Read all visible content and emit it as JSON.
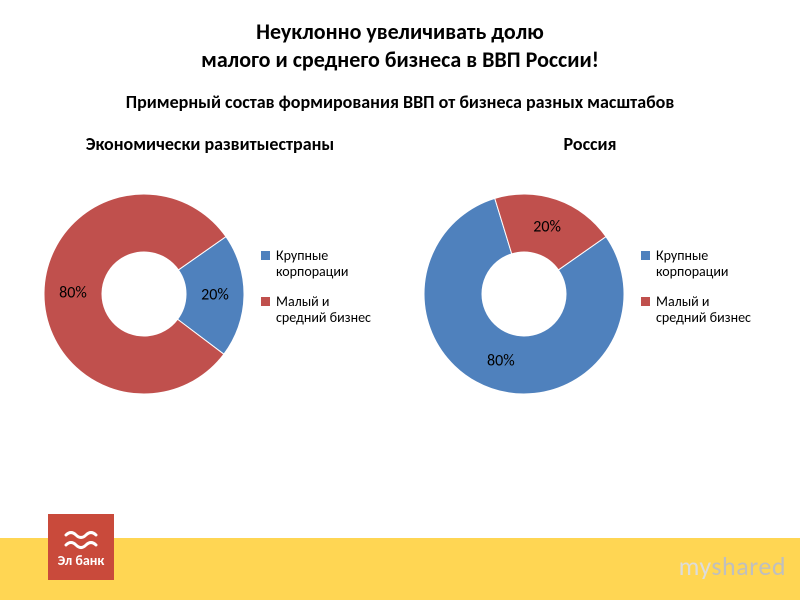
{
  "title_line1": "Неуклонно увеличивать долю",
  "title_line2": "малого и среднего бизнеса в ВВП России!",
  "title_fontsize": 22,
  "subtitle": "Примерный состав формирования ВВП от бизнеса разных масштабов",
  "subtitle_fontsize": 18,
  "chart_title_fontsize": 18,
  "slice_label_fontsize": 16,
  "colors": {
    "series_large": "#4f81bd",
    "series_small": "#c0504d",
    "footer_bar": "#ffd653",
    "logo_bg": "#c94a3b",
    "logo_wave": "#ffffff",
    "background": "#ffffff"
  },
  "donut": {
    "outer_radius": 100,
    "inner_radius": 42,
    "start_angle_deg": -35
  },
  "charts": [
    {
      "title": "Экономически развитые\nстраны",
      "slices": [
        {
          "key": "large",
          "value": 20,
          "label": "20%",
          "color_ref": "series_large"
        },
        {
          "key": "small",
          "value": 80,
          "label": "80%",
          "color_ref": "series_small"
        }
      ]
    },
    {
      "title": "Россия",
      "slices": [
        {
          "key": "large",
          "value": 80,
          "label": "80%",
          "color_ref": "series_large"
        },
        {
          "key": "small",
          "value": 20,
          "label": "20%",
          "color_ref": "series_small"
        }
      ]
    }
  ],
  "legend": [
    {
      "label": "Крупные корпорации",
      "color_ref": "series_large"
    },
    {
      "label": "Малый и средний бизнес",
      "color_ref": "series_small"
    }
  ],
  "logo": {
    "text": "Эл банк"
  },
  "watermark": {
    "part1": "my",
    "part2": "shared"
  }
}
